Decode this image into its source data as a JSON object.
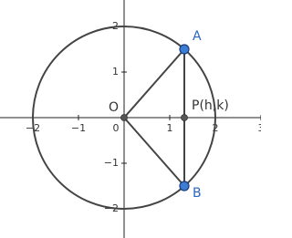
{
  "chart_data": {
    "type": "geometry",
    "xlim": [
      -2.72,
      3
    ],
    "ylim": [
      -2.64,
      2.58
    ],
    "xticks": [
      {
        "value": -2,
        "label": "−2"
      },
      {
        "value": -1,
        "label": "−1"
      },
      0,
      1,
      2,
      3
    ],
    "yticks": [
      {
        "value": -2,
        "label": "−2"
      },
      {
        "value": -1,
        "label": "−1"
      },
      1,
      2
    ],
    "circle": {
      "center": [
        0,
        0
      ],
      "radius": 2,
      "color": "#444444"
    },
    "points": [
      {
        "label": "O",
        "x": 0,
        "y": 0,
        "color": "#555555",
        "label_color": "#333333"
      },
      {
        "label": "A",
        "x": 1.32,
        "y": 1.5,
        "color": "#3d7dd6",
        "label_color": "#2a65c4"
      },
      {
        "label": "P(h,k)",
        "x": 1.32,
        "y": 0,
        "color": "#555555",
        "label_color": "#333333"
      },
      {
        "label": "B",
        "x": 1.32,
        "y": -1.5,
        "color": "#3d7dd6",
        "label_color": "#2a65c4"
      }
    ],
    "segments": [
      [
        0,
        1
      ],
      [
        0,
        3
      ],
      [
        1,
        3
      ]
    ]
  }
}
